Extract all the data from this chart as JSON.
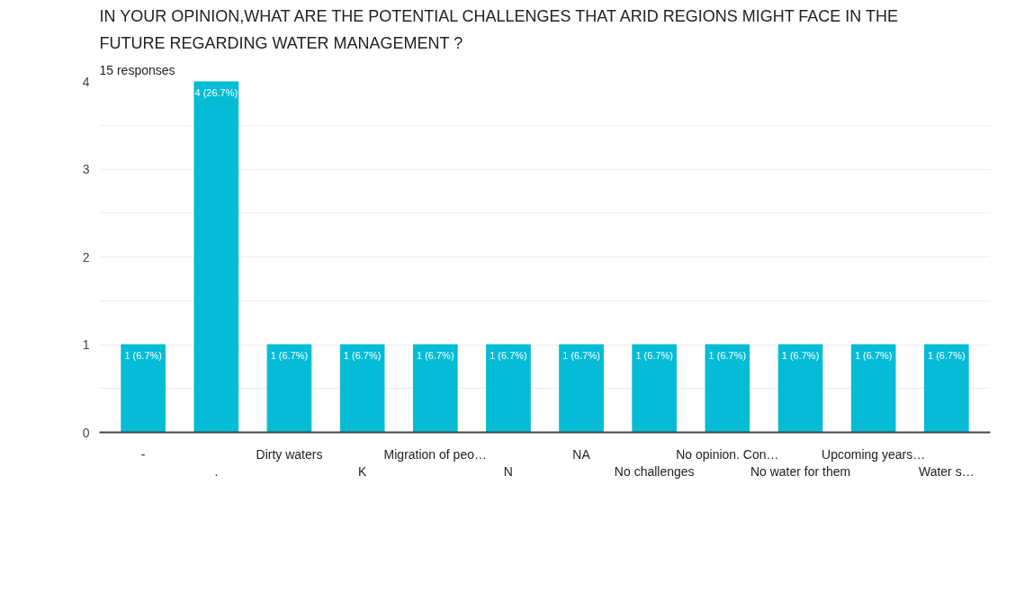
{
  "chart_data": {
    "type": "bar",
    "title": "IN YOUR OPINION,WHAT ARE THE POTENTIAL CHALLENGES THAT ARID REGIONS MIGHT FACE IN THE FUTURE REGARDING WATER MANAGEMENT ?",
    "subtitle": "15 responses",
    "categories": [
      "-",
      ".",
      "Dirty waters",
      "K",
      "Migration of peo…",
      "N",
      "NA",
      "No challenges",
      "No opinion. Con…",
      "No water for them",
      "Upcoming years…",
      "Water s…"
    ],
    "values": [
      1,
      4,
      1,
      1,
      1,
      1,
      1,
      1,
      1,
      1,
      1,
      1
    ],
    "value_labels": [
      "1 (6.7%)",
      "4 (26.7%)",
      "1 (6.7%)",
      "1 (6.7%)",
      "1 (6.7%)",
      "1 (6.7%)",
      "1 (6.7%)",
      "1 (6.7%)",
      "1 (6.7%)",
      "1 (6.7%)",
      "1 (6.7%)",
      "1 (6.7%)"
    ],
    "color": "#04bcd5",
    "ylim": [
      0,
      4
    ],
    "yticks": [
      0,
      {
        "value": 0.5,
        "label": null
      },
      1,
      {
        "value": 1.5,
        "label": null
      },
      2,
      {
        "value": 2.5,
        "label": null
      },
      3,
      {
        "value": 3.5,
        "label": null
      },
      4
    ],
    "grid": "y"
  }
}
